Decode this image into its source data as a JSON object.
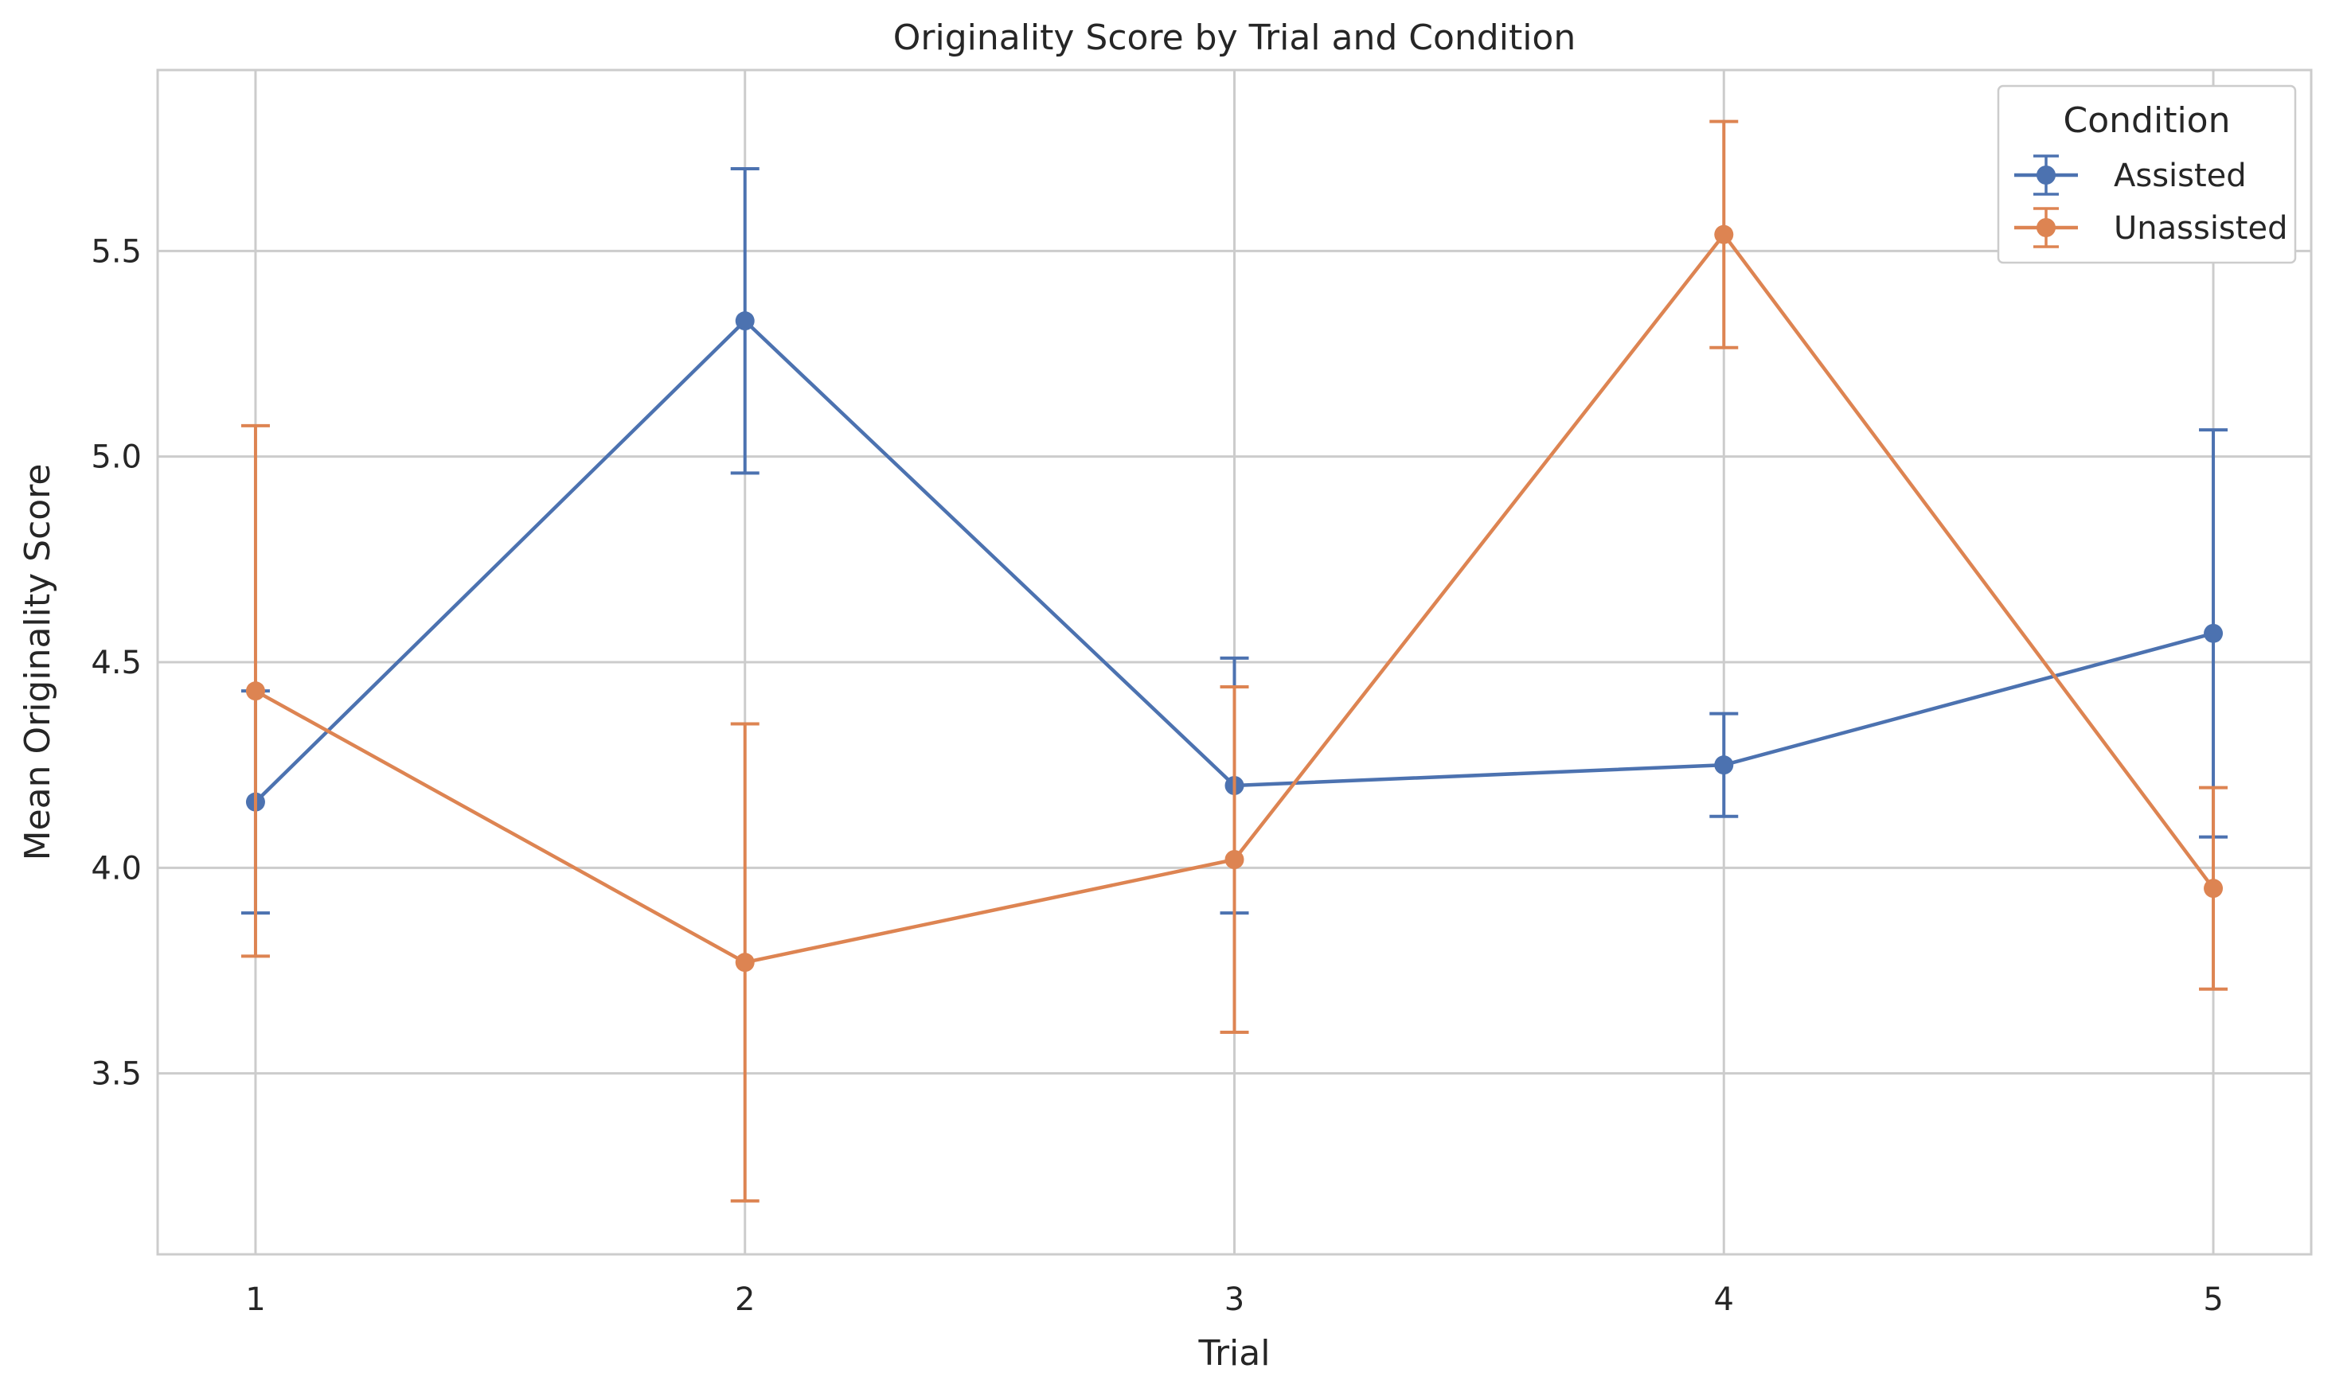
{
  "chart_data": {
    "type": "line",
    "title": "Originality Score by Trial and Condition",
    "xlabel": "Trial",
    "ylabel": "Mean Originality Score",
    "x": [
      1,
      2,
      3,
      4,
      5
    ],
    "x_tick_labels": [
      "1",
      "2",
      "3",
      "4",
      "5"
    ],
    "y_ticks": [
      3.5,
      4.0,
      4.5,
      5.0,
      5.5
    ],
    "y_tick_labels": [
      "3.5",
      "4.0",
      "4.5",
      "5.0",
      "5.5"
    ],
    "xlim": [
      0.8,
      5.2
    ],
    "ylim": [
      3.06,
      5.94
    ],
    "grid": true,
    "legend": {
      "title": "Condition",
      "placement": "top-right"
    },
    "series": [
      {
        "name": "Assisted",
        "color": "#4c72b0",
        "values": [
          4.16,
          5.33,
          4.2,
          4.25,
          4.57
        ],
        "error": [
          0.27,
          0.37,
          0.31,
          0.125,
          0.495
        ]
      },
      {
        "name": "Unassisted",
        "color": "#dd8452",
        "values": [
          4.43,
          3.77,
          4.02,
          5.54,
          3.95
        ],
        "error": [
          0.645,
          0.58,
          0.42,
          0.275,
          0.245
        ]
      }
    ]
  }
}
